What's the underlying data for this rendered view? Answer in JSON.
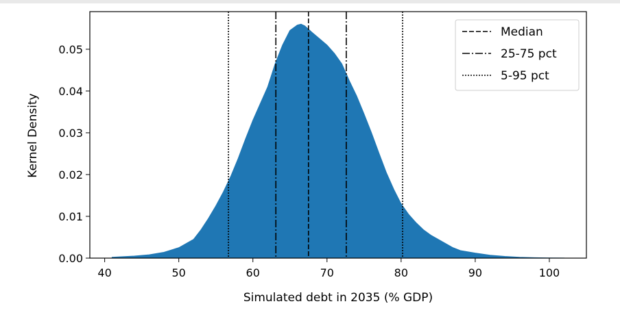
{
  "chart_data": {
    "type": "area",
    "title": "",
    "xlabel": "Simulated debt in 2035 (% GDP)",
    "ylabel": "Kernel Density",
    "xlim": [
      38,
      105
    ],
    "ylim": [
      0,
      0.059
    ],
    "xticks": [
      40,
      50,
      60,
      70,
      80,
      90,
      100
    ],
    "xtick_labels": [
      "40",
      "50",
      "60",
      "70",
      "80",
      "90",
      "100"
    ],
    "yticks": [
      0.0,
      0.01,
      0.02,
      0.03,
      0.04,
      0.05
    ],
    "ytick_labels": [
      "0.00",
      "0.01",
      "0.02",
      "0.03",
      "0.04",
      "0.05"
    ],
    "grid": false,
    "fill_color": "#1f77b4",
    "density": {
      "x": [
        41,
        42,
        44,
        46,
        48,
        50,
        52,
        53,
        54,
        55,
        56,
        57,
        58,
        59,
        60,
        61,
        62,
        63,
        64,
        65,
        66,
        66.5,
        67,
        68,
        69,
        70,
        71,
        72,
        73,
        74,
        75,
        76,
        77,
        78,
        79,
        80,
        81,
        82,
        83,
        84,
        85,
        86,
        87,
        88,
        90,
        92,
        94,
        96,
        98,
        100,
        102
      ],
      "y": [
        0.0002,
        0.0003,
        0.0005,
        0.0008,
        0.0014,
        0.0025,
        0.0045,
        0.0068,
        0.0095,
        0.0125,
        0.0158,
        0.0195,
        0.0238,
        0.0285,
        0.033,
        0.037,
        0.041,
        0.0465,
        0.051,
        0.0545,
        0.0558,
        0.056,
        0.0556,
        0.054,
        0.0525,
        0.051,
        0.049,
        0.0465,
        0.0425,
        0.0388,
        0.0345,
        0.03,
        0.0252,
        0.0205,
        0.0165,
        0.013,
        0.0105,
        0.0085,
        0.0068,
        0.0055,
        0.0045,
        0.0035,
        0.0025,
        0.0018,
        0.0012,
        0.0007,
        0.0004,
        0.0002,
        0.0001,
        5e-05,
        2e-05
      ]
    },
    "vlines": [
      {
        "name": "Median",
        "x": 67.5,
        "style": "dashed"
      },
      {
        "name": "25-75 pct",
        "x": [
          63.1,
          72.6
        ],
        "style": "dashdot"
      },
      {
        "name": "5-95 pct",
        "x": [
          56.7,
          80.2
        ],
        "style": "dotted"
      }
    ],
    "legend": {
      "placement": "top-right",
      "entries": [
        {
          "label": "Median",
          "style": "dashed"
        },
        {
          "label": "25-75 pct",
          "style": "dashdot"
        },
        {
          "label": "5-95 pct",
          "style": "dotted"
        }
      ]
    }
  }
}
